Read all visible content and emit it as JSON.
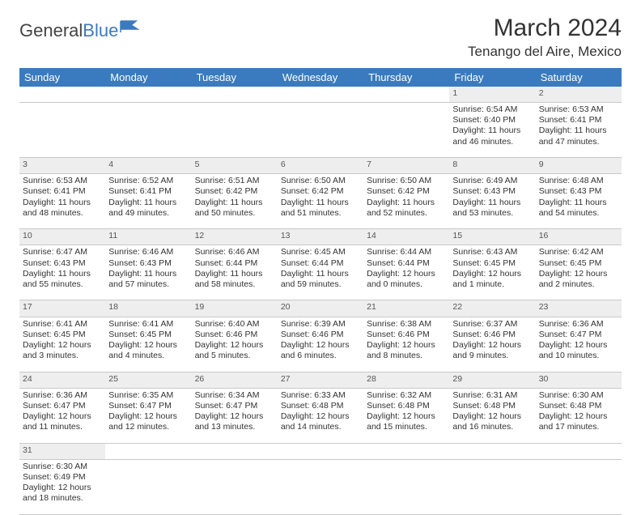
{
  "brand": {
    "part1": "General",
    "part2": "Blue",
    "logo_color": "#3a7bbf"
  },
  "title": "March 2024",
  "location": "Tenango del Aire, Mexico",
  "header_bg": "#3a7bbf",
  "daynum_bg": "#eeeeee",
  "weekdays": [
    "Sunday",
    "Monday",
    "Tuesday",
    "Wednesday",
    "Thursday",
    "Friday",
    "Saturday"
  ],
  "weeks": [
    [
      null,
      null,
      null,
      null,
      null,
      {
        "n": "1",
        "sr": "Sunrise: 6:54 AM",
        "ss": "Sunset: 6:40 PM",
        "dl": "Daylight: 11 hours and 46 minutes."
      },
      {
        "n": "2",
        "sr": "Sunrise: 6:53 AM",
        "ss": "Sunset: 6:41 PM",
        "dl": "Daylight: 11 hours and 47 minutes."
      }
    ],
    [
      {
        "n": "3",
        "sr": "Sunrise: 6:53 AM",
        "ss": "Sunset: 6:41 PM",
        "dl": "Daylight: 11 hours and 48 minutes."
      },
      {
        "n": "4",
        "sr": "Sunrise: 6:52 AM",
        "ss": "Sunset: 6:41 PM",
        "dl": "Daylight: 11 hours and 49 minutes."
      },
      {
        "n": "5",
        "sr": "Sunrise: 6:51 AM",
        "ss": "Sunset: 6:42 PM",
        "dl": "Daylight: 11 hours and 50 minutes."
      },
      {
        "n": "6",
        "sr": "Sunrise: 6:50 AM",
        "ss": "Sunset: 6:42 PM",
        "dl": "Daylight: 11 hours and 51 minutes."
      },
      {
        "n": "7",
        "sr": "Sunrise: 6:50 AM",
        "ss": "Sunset: 6:42 PM",
        "dl": "Daylight: 11 hours and 52 minutes."
      },
      {
        "n": "8",
        "sr": "Sunrise: 6:49 AM",
        "ss": "Sunset: 6:43 PM",
        "dl": "Daylight: 11 hours and 53 minutes."
      },
      {
        "n": "9",
        "sr": "Sunrise: 6:48 AM",
        "ss": "Sunset: 6:43 PM",
        "dl": "Daylight: 11 hours and 54 minutes."
      }
    ],
    [
      {
        "n": "10",
        "sr": "Sunrise: 6:47 AM",
        "ss": "Sunset: 6:43 PM",
        "dl": "Daylight: 11 hours and 55 minutes."
      },
      {
        "n": "11",
        "sr": "Sunrise: 6:46 AM",
        "ss": "Sunset: 6:43 PM",
        "dl": "Daylight: 11 hours and 57 minutes."
      },
      {
        "n": "12",
        "sr": "Sunrise: 6:46 AM",
        "ss": "Sunset: 6:44 PM",
        "dl": "Daylight: 11 hours and 58 minutes."
      },
      {
        "n": "13",
        "sr": "Sunrise: 6:45 AM",
        "ss": "Sunset: 6:44 PM",
        "dl": "Daylight: 11 hours and 59 minutes."
      },
      {
        "n": "14",
        "sr": "Sunrise: 6:44 AM",
        "ss": "Sunset: 6:44 PM",
        "dl": "Daylight: 12 hours and 0 minutes."
      },
      {
        "n": "15",
        "sr": "Sunrise: 6:43 AM",
        "ss": "Sunset: 6:45 PM",
        "dl": "Daylight: 12 hours and 1 minute."
      },
      {
        "n": "16",
        "sr": "Sunrise: 6:42 AM",
        "ss": "Sunset: 6:45 PM",
        "dl": "Daylight: 12 hours and 2 minutes."
      }
    ],
    [
      {
        "n": "17",
        "sr": "Sunrise: 6:41 AM",
        "ss": "Sunset: 6:45 PM",
        "dl": "Daylight: 12 hours and 3 minutes."
      },
      {
        "n": "18",
        "sr": "Sunrise: 6:41 AM",
        "ss": "Sunset: 6:45 PM",
        "dl": "Daylight: 12 hours and 4 minutes."
      },
      {
        "n": "19",
        "sr": "Sunrise: 6:40 AM",
        "ss": "Sunset: 6:46 PM",
        "dl": "Daylight: 12 hours and 5 minutes."
      },
      {
        "n": "20",
        "sr": "Sunrise: 6:39 AM",
        "ss": "Sunset: 6:46 PM",
        "dl": "Daylight: 12 hours and 6 minutes."
      },
      {
        "n": "21",
        "sr": "Sunrise: 6:38 AM",
        "ss": "Sunset: 6:46 PM",
        "dl": "Daylight: 12 hours and 8 minutes."
      },
      {
        "n": "22",
        "sr": "Sunrise: 6:37 AM",
        "ss": "Sunset: 6:46 PM",
        "dl": "Daylight: 12 hours and 9 minutes."
      },
      {
        "n": "23",
        "sr": "Sunrise: 6:36 AM",
        "ss": "Sunset: 6:47 PM",
        "dl": "Daylight: 12 hours and 10 minutes."
      }
    ],
    [
      {
        "n": "24",
        "sr": "Sunrise: 6:36 AM",
        "ss": "Sunset: 6:47 PM",
        "dl": "Daylight: 12 hours and 11 minutes."
      },
      {
        "n": "25",
        "sr": "Sunrise: 6:35 AM",
        "ss": "Sunset: 6:47 PM",
        "dl": "Daylight: 12 hours and 12 minutes."
      },
      {
        "n": "26",
        "sr": "Sunrise: 6:34 AM",
        "ss": "Sunset: 6:47 PM",
        "dl": "Daylight: 12 hours and 13 minutes."
      },
      {
        "n": "27",
        "sr": "Sunrise: 6:33 AM",
        "ss": "Sunset: 6:48 PM",
        "dl": "Daylight: 12 hours and 14 minutes."
      },
      {
        "n": "28",
        "sr": "Sunrise: 6:32 AM",
        "ss": "Sunset: 6:48 PM",
        "dl": "Daylight: 12 hours and 15 minutes."
      },
      {
        "n": "29",
        "sr": "Sunrise: 6:31 AM",
        "ss": "Sunset: 6:48 PM",
        "dl": "Daylight: 12 hours and 16 minutes."
      },
      {
        "n": "30",
        "sr": "Sunrise: 6:30 AM",
        "ss": "Sunset: 6:48 PM",
        "dl": "Daylight: 12 hours and 17 minutes."
      }
    ],
    [
      {
        "n": "31",
        "sr": "Sunrise: 6:30 AM",
        "ss": "Sunset: 6:49 PM",
        "dl": "Daylight: 12 hours and 18 minutes."
      },
      null,
      null,
      null,
      null,
      null,
      null
    ]
  ]
}
